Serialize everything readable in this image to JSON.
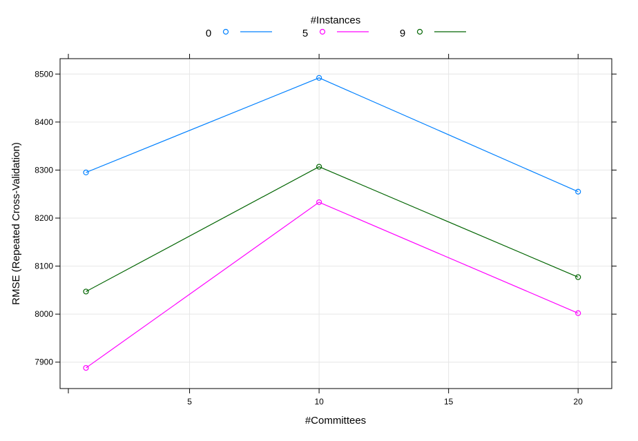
{
  "chart_data": {
    "type": "line",
    "legend_title": "#Instances",
    "legend_position": "top",
    "xlabel": "#Committees",
    "ylabel": "RMSE (Repeated Cross-Validation)",
    "xlim": [
      0,
      21.3
    ],
    "ylim": [
      7845,
      8532
    ],
    "x_ticks": [
      5,
      10,
      15,
      20
    ],
    "y_ticks": [
      7900,
      8000,
      8100,
      8200,
      8300,
      8400,
      8500
    ],
    "grid": true,
    "x": [
      1,
      10,
      20
    ],
    "series": [
      {
        "name": "0",
        "color": "#0080ff",
        "values": [
          8295,
          8492,
          8255
        ]
      },
      {
        "name": "5",
        "color": "#ff00ff",
        "values": [
          7888,
          8233,
          8002
        ]
      },
      {
        "name": "9",
        "color": "#006400",
        "values": [
          8047,
          8307,
          8077
        ]
      }
    ]
  }
}
